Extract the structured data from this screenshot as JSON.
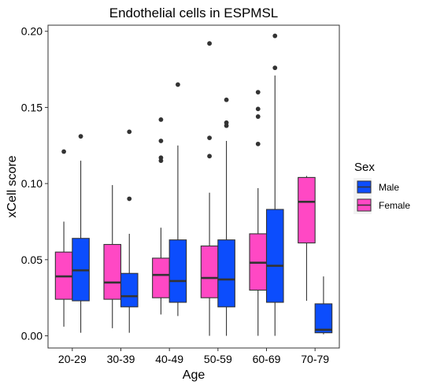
{
  "chart_data": {
    "type": "boxplot",
    "title": "Endothelial cells in ESPMSL",
    "xlabel": "Age",
    "ylabel": "xCell score",
    "ylim": [
      -0.008,
      0.204
    ],
    "yticks": [
      0.0,
      0.05,
      0.1,
      0.15,
      0.2
    ],
    "ytick_labels": [
      "0.00",
      "0.05",
      "0.10",
      "0.15",
      "0.20"
    ],
    "categories": [
      "20-29",
      "30-39",
      "40-49",
      "50-59",
      "60-69",
      "70-79"
    ],
    "legend": {
      "title": "Sex",
      "position": "right",
      "order": [
        "Male",
        "Female"
      ]
    },
    "grid": false,
    "series": [
      {
        "name": "Female",
        "color": "#ff48c4",
        "boxes": [
          {
            "min": 0.006,
            "q1": 0.024,
            "median": 0.039,
            "q3": 0.055,
            "max": 0.075,
            "outliers": [
              0.121
            ]
          },
          {
            "min": 0.005,
            "q1": 0.024,
            "median": 0.035,
            "q3": 0.06,
            "max": 0.099,
            "outliers": []
          },
          {
            "min": 0.014,
            "q1": 0.025,
            "median": 0.04,
            "q3": 0.051,
            "max": 0.071,
            "outliers": [
              0.115,
              0.117,
              0.128,
              0.142
            ]
          },
          {
            "min": 0.0,
            "q1": 0.025,
            "median": 0.038,
            "q3": 0.059,
            "max": 0.094,
            "outliers": [
              0.118,
              0.13,
              0.192
            ]
          },
          {
            "min": 0.0,
            "q1": 0.03,
            "median": 0.048,
            "q3": 0.067,
            "max": 0.097,
            "outliers": [
              0.126,
              0.144,
              0.149,
              0.16
            ]
          },
          {
            "min": 0.023,
            "q1": 0.061,
            "median": 0.088,
            "q3": 0.104,
            "max": 0.105,
            "outliers": []
          }
        ]
      },
      {
        "name": "Male",
        "color": "#0c4dfd",
        "boxes": [
          {
            "min": 0.002,
            "q1": 0.023,
            "median": 0.043,
            "q3": 0.064,
            "max": 0.115,
            "outliers": [
              0.131
            ]
          },
          {
            "min": 0.002,
            "q1": 0.019,
            "median": 0.026,
            "q3": 0.041,
            "max": 0.067,
            "outliers": [
              0.09,
              0.134
            ]
          },
          {
            "min": 0.013,
            "q1": 0.022,
            "median": 0.036,
            "q3": 0.063,
            "max": 0.125,
            "outliers": [
              0.165
            ]
          },
          {
            "min": 0.0,
            "q1": 0.019,
            "median": 0.037,
            "q3": 0.063,
            "max": 0.128,
            "outliers": [
              0.138,
              0.14,
              0.155
            ]
          },
          {
            "min": 0.0,
            "q1": 0.022,
            "median": 0.046,
            "q3": 0.083,
            "max": 0.171,
            "outliers": [
              0.176,
              0.197
            ]
          },
          {
            "min": 0.001,
            "q1": 0.002,
            "median": 0.004,
            "q3": 0.021,
            "max": 0.039,
            "outliers": []
          }
        ]
      }
    ]
  }
}
